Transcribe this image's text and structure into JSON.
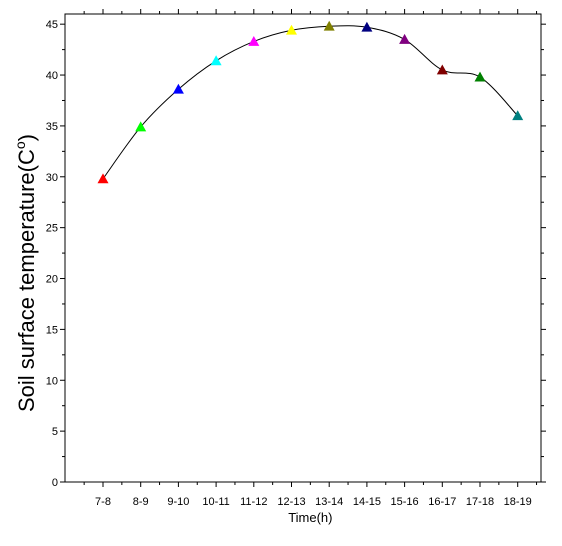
{
  "chart_data": {
    "type": "scatter",
    "title": "",
    "xlabel": "Time(h)",
    "ylabel": "Soil surface temperature(C",
    "ylabel_unit_sup": "o",
    "ylabel_close": ")",
    "categories": [
      "7-8",
      "8-9",
      "9-10",
      "10-11",
      "11-12",
      "12-13",
      "13-14",
      "14-15",
      "15-16",
      "16-17",
      "17-18",
      "18-19"
    ],
    "values": [
      29.8,
      34.9,
      38.6,
      41.4,
      43.3,
      44.4,
      44.8,
      44.7,
      43.5,
      40.5,
      39.8,
      36.0
    ],
    "colors": [
      "#ff0000",
      "#00ff00",
      "#0000ff",
      "#00ffff",
      "#ff00ff",
      "#ffff00",
      "#808000",
      "#000080",
      "#800080",
      "#800000",
      "#008000",
      "#008080"
    ],
    "yticks": [
      0,
      5,
      10,
      15,
      20,
      25,
      30,
      35,
      40,
      45
    ],
    "ylim": [
      0,
      46
    ],
    "marker": "triangle-up",
    "smooth_line": true,
    "grid": false,
    "legend": "none"
  }
}
